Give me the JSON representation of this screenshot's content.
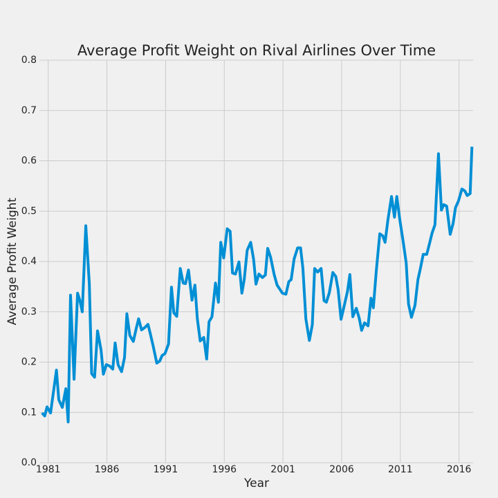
{
  "chart_data": {
    "type": "line",
    "title": "Average Profit Weight on Rival Airlines Over Time",
    "x_label": "Year",
    "y_label": "Average Profit Weight",
    "x": [
      1980.47,
      1980.7,
      1980.9,
      1981.2,
      1981.5,
      1981.7,
      1981.9,
      1982.2,
      1982.5,
      1982.7,
      1982.9,
      1983.2,
      1983.5,
      1983.7,
      1983.9,
      1984.2,
      1984.5,
      1984.7,
      1984.95,
      1985.2,
      1985.5,
      1985.7,
      1985.95,
      1986.25,
      1986.5,
      1986.7,
      1986.95,
      1987.25,
      1987.5,
      1987.7,
      1987.95,
      1988.25,
      1988.5,
      1988.7,
      1988.95,
      1989.25,
      1989.5,
      1989.7,
      1989.95,
      1990.25,
      1990.5,
      1990.7,
      1990.95,
      1991.25,
      1991.5,
      1991.7,
      1991.95,
      1992.25,
      1992.5,
      1992.7,
      1992.95,
      1993.25,
      1993.5,
      1993.7,
      1993.95,
      1994.25,
      1994.5,
      1994.7,
      1994.95,
      1995.25,
      1995.5,
      1995.7,
      1995.95,
      1996.25,
      1996.5,
      1996.7,
      1996.95,
      1997.25,
      1997.5,
      1997.7,
      1997.95,
      1998.25,
      1998.5,
      1998.7,
      1998.95,
      1999.25,
      1999.5,
      1999.7,
      1999.95,
      2000.25,
      2000.5,
      2000.7,
      2000.95,
      2001.25,
      2001.5,
      2001.7,
      2001.95,
      2002.25,
      2002.5,
      2002.7,
      2002.95,
      2003.25,
      2003.5,
      2003.7,
      2003.95,
      2004.25,
      2004.5,
      2004.7,
      2004.95,
      2005.25,
      2005.5,
      2005.7,
      2005.95,
      2006.25,
      2006.5,
      2006.7,
      2006.95,
      2007.25,
      2007.5,
      2007.7,
      2007.95,
      2008.25,
      2008.5,
      2008.7,
      2008.95,
      2009.25,
      2009.5,
      2009.7,
      2009.95,
      2010.25,
      2010.5,
      2010.7,
      2010.95,
      2011.25,
      2011.5,
      2011.7,
      2011.95,
      2012.25,
      2012.5,
      2012.7,
      2012.95,
      2013.25,
      2013.5,
      2013.7,
      2013.95,
      2014.25,
      2014.5,
      2014.7,
      2014.95,
      2015.25,
      2015.5,
      2015.7,
      2015.95,
      2016.25,
      2016.5,
      2016.7,
      2016.95,
      2017.1
    ],
    "series": [
      {
        "color": "#008fd5",
        "values": [
          0.099,
          0.093,
          0.111,
          0.099,
          0.15,
          0.184,
          0.125,
          0.11,
          0.147,
          0.081,
          0.333,
          0.166,
          0.337,
          0.322,
          0.3,
          0.471,
          0.356,
          0.177,
          0.17,
          0.262,
          0.224,
          0.176,
          0.195,
          0.192,
          0.186,
          0.238,
          0.195,
          0.181,
          0.209,
          0.296,
          0.253,
          0.241,
          0.267,
          0.286,
          0.264,
          0.269,
          0.275,
          0.256,
          0.231,
          0.198,
          0.202,
          0.213,
          0.217,
          0.236,
          0.349,
          0.298,
          0.291,
          0.386,
          0.357,
          0.356,
          0.383,
          0.323,
          0.353,
          0.287,
          0.242,
          0.249,
          0.206,
          0.28,
          0.29,
          0.357,
          0.319,
          0.438,
          0.407,
          0.465,
          0.46,
          0.377,
          0.375,
          0.399,
          0.337,
          0.364,
          0.422,
          0.438,
          0.404,
          0.355,
          0.375,
          0.368,
          0.373,
          0.426,
          0.408,
          0.374,
          0.353,
          0.346,
          0.337,
          0.335,
          0.36,
          0.364,
          0.405,
          0.427,
          0.427,
          0.386,
          0.286,
          0.243,
          0.274,
          0.386,
          0.379,
          0.386,
          0.322,
          0.319,
          0.338,
          0.378,
          0.37,
          0.344,
          0.285,
          0.315,
          0.341,
          0.374,
          0.29,
          0.307,
          0.287,
          0.263,
          0.278,
          0.272,
          0.327,
          0.308,
          0.381,
          0.455,
          0.451,
          0.438,
          0.484,
          0.529,
          0.488,
          0.529,
          0.484,
          0.438,
          0.397,
          0.315,
          0.289,
          0.313,
          0.364,
          0.385,
          0.414,
          0.414,
          0.437,
          0.456,
          0.473,
          0.614,
          0.502,
          0.513,
          0.51,
          0.454,
          0.476,
          0.507,
          0.52,
          0.544,
          0.54,
          0.531,
          0.535,
          0.628
        ]
      }
    ],
    "xlim": [
      1980.25,
      2017.2
    ],
    "xticks": [
      1981,
      1986,
      1991,
      1996,
      2001,
      2006,
      2011,
      2016
    ],
    "ylim": [
      0,
      0.8
    ],
    "yticks": [
      {
        "value": 0,
        "label": "0.0"
      },
      0.1,
      0.2,
      0.3,
      0.4,
      0.5,
      0.6,
      0.7,
      0.8
    ],
    "grid": true
  }
}
